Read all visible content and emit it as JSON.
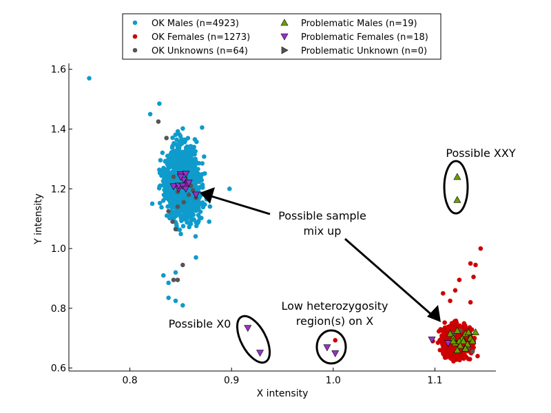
{
  "chart_data": {
    "type": "scatter",
    "xlabel": "X intensity",
    "ylabel": "Y intensity",
    "xlim": [
      0.74,
      1.16
    ],
    "ylim": [
      0.59,
      1.62
    ],
    "grid": false,
    "legend_placement": "top-center",
    "x_ticks": [
      "0.8",
      "0.9",
      "1.0",
      "1.1"
    ],
    "y_ticks": [
      "0.6",
      "0.8",
      "1.0",
      "1.2",
      "1.4",
      "1.6"
    ],
    "series": [
      {
        "name": "OK Males (n=4923)",
        "marker": "circle",
        "color": "#0f9bcb",
        "cluster": {
          "center": [
            0.852,
            1.22
          ],
          "spread": [
            0.012,
            0.08
          ],
          "n": 4923
        },
        "points": [
          [
            0.76,
            1.57
          ],
          [
            0.829,
            1.485
          ],
          [
            0.82,
            1.45
          ],
          [
            0.871,
            1.405
          ],
          [
            0.898,
            1.2
          ],
          [
            0.878,
            1.09
          ],
          [
            0.822,
            1.15
          ],
          [
            0.833,
            0.91
          ],
          [
            0.838,
            0.835
          ],
          [
            0.845,
            0.825
          ],
          [
            0.852,
            0.81
          ],
          [
            0.838,
            0.885
          ],
          [
            0.845,
            0.92
          ],
          [
            0.865,
            0.97
          ]
        ]
      },
      {
        "name": "OK Females (n=1273)",
        "marker": "circle",
        "color": "#cc0000",
        "cluster": {
          "center": [
            1.122,
            0.69
          ],
          "spread": [
            0.009,
            0.035
          ],
          "n": 1273
        },
        "points": [
          [
            1.145,
            1.0
          ],
          [
            1.135,
            0.95
          ],
          [
            1.14,
            0.945
          ],
          [
            1.138,
            0.905
          ],
          [
            1.124,
            0.895
          ],
          [
            1.12,
            0.86
          ],
          [
            1.108,
            0.85
          ],
          [
            1.115,
            0.825
          ],
          [
            1.135,
            0.82
          ],
          [
            1.098,
            0.69
          ],
          [
            1.103,
            0.685
          ],
          [
            1.002,
            0.693
          ],
          [
            1.128,
            0.66
          ],
          [
            1.105,
            0.66
          ],
          [
            1.142,
            0.64
          ]
        ]
      },
      {
        "name": "OK Unknowns (n=64)",
        "marker": "circle",
        "color": "#555555",
        "points": [
          [
            0.828,
            1.425
          ],
          [
            0.836,
            1.37
          ],
          [
            0.843,
            1.24
          ],
          [
            0.85,
            1.25
          ],
          [
            0.855,
            1.23
          ],
          [
            0.86,
            1.21
          ],
          [
            0.847,
            1.19
          ],
          [
            0.858,
            1.18
          ],
          [
            0.865,
            1.17
          ],
          [
            0.853,
            1.155
          ],
          [
            0.845,
            1.065
          ],
          [
            0.842,
            1.09
          ],
          [
            0.847,
            1.14
          ],
          [
            0.852,
            0.945
          ],
          [
            0.847,
            0.895
          ],
          [
            0.843,
            0.895
          ],
          [
            0.838,
            1.125
          ],
          [
            0.862,
            1.195
          ],
          [
            1.125,
            0.725
          ],
          [
            1.133,
            0.67
          ],
          [
            1.137,
            0.655
          ],
          [
            1.118,
            0.715
          ]
        ]
      },
      {
        "name": "Problematic Males (n=19)",
        "marker": "triangle-up",
        "color": "#6a9e00",
        "points": [
          [
            1.122,
            1.24
          ],
          [
            1.122,
            1.163
          ],
          [
            1.115,
            0.715
          ],
          [
            1.118,
            0.7
          ],
          [
            1.122,
            0.725
          ],
          [
            1.127,
            0.7
          ],
          [
            1.13,
            0.715
          ],
          [
            1.133,
            0.72
          ],
          [
            1.135,
            0.7
          ],
          [
            1.124,
            0.69
          ],
          [
            1.128,
            0.69
          ],
          [
            1.12,
            0.683
          ],
          [
            1.118,
            0.69
          ],
          [
            1.125,
            0.675
          ],
          [
            1.132,
            0.68
          ],
          [
            1.137,
            0.69
          ],
          [
            1.14,
            0.72
          ],
          [
            1.13,
            0.665
          ],
          [
            1.122,
            0.66
          ]
        ]
      },
      {
        "name": "Problematic Females (n=18)",
        "marker": "triangle-down",
        "color": "#9b30c8",
        "points": [
          [
            0.916,
            0.734
          ],
          [
            0.928,
            0.651
          ],
          [
            0.994,
            0.669
          ],
          [
            1.002,
            0.649
          ],
          [
            1.097,
            0.695
          ],
          [
            1.113,
            0.683
          ],
          [
            0.85,
            1.248
          ],
          [
            0.855,
            1.25
          ],
          [
            0.853,
            1.23
          ],
          [
            0.857,
            1.215
          ],
          [
            0.848,
            1.2
          ],
          [
            0.843,
            1.208
          ],
          [
            0.848,
            1.21
          ],
          [
            0.852,
            1.21
          ],
          [
            0.858,
            1.22
          ],
          [
            0.865,
            1.18
          ],
          [
            0.85,
            1.24
          ],
          [
            0.855,
            1.2
          ]
        ]
      },
      {
        "name": "Problematic Unknown (n=0)",
        "marker": "triangle-right",
        "color": "#555555",
        "points": []
      }
    ],
    "annotations": [
      {
        "text": [
          "Possible sample",
          "mix up"
        ]
      },
      {
        "text": [
          "Possible XXY"
        ]
      },
      {
        "text": [
          "Possible X0"
        ]
      },
      {
        "text": [
          "Low heterozygosity",
          "region(s) on X"
        ]
      }
    ]
  }
}
